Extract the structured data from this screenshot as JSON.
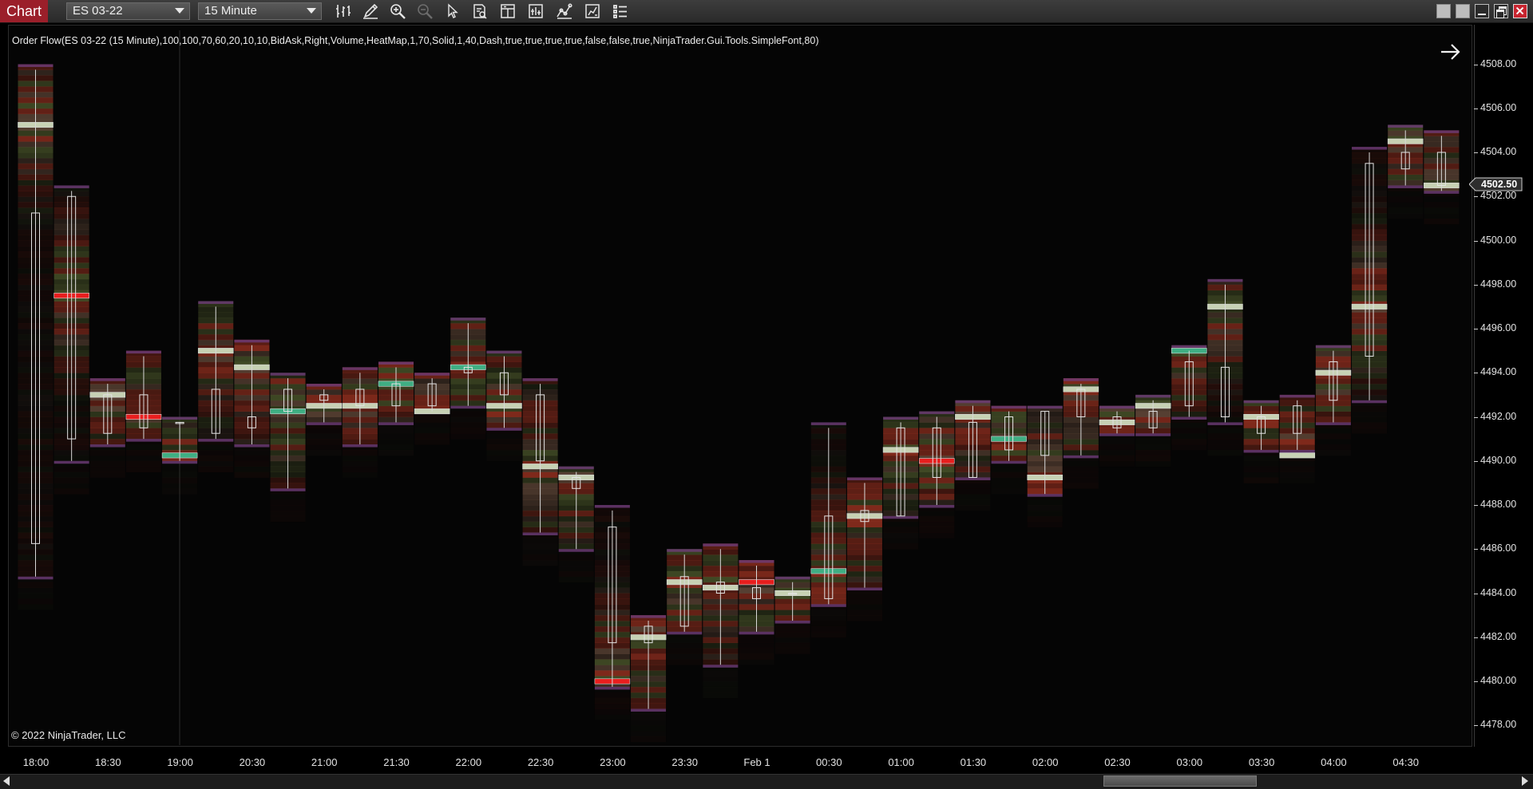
{
  "window": {
    "title": "Chart",
    "instrument": "ES 03-22",
    "interval": "15 Minute"
  },
  "toolbar": {
    "tools": [
      "bar-type-icon",
      "drawing-pencil-icon",
      "zoom-in-icon",
      "zoom-out-icon",
      "pointer-icon",
      "data-box-icon",
      "templates-icon",
      "indicators-icon",
      "strategies-icon",
      "properties-icon",
      "object-list-icon"
    ]
  },
  "indicator_label": "Order Flow(ES 03-22 (15 Minute),100,100,70,60,20,10,10,BidAsk,Right,Volume,HeatMap,1,70,Solid,1,40,Dash,true,true,true,true,false,false,true,NinjaTrader.Gui.Tools.SimpleFont,80)",
  "copyright": "© 2022 NinjaTrader, LLC",
  "last_price": "4502.50",
  "colors": {
    "title_red": "#9b1f2a",
    "ask_green": "#3fae83",
    "bid_red": "#e81e1e",
    "poc_fill": "#c7d1b4"
  },
  "chart_data": {
    "type": "candlestick",
    "price_axis": {
      "min": 4477.0,
      "max": 4509.0,
      "tick_labels": [
        "4508.00",
        "4506.00",
        "4504.00",
        "4502.00",
        "4500.00",
        "4498.00",
        "4496.00",
        "4494.00",
        "4492.00",
        "4490.00",
        "4488.00",
        "4486.00",
        "4484.00",
        "4482.00",
        "4480.00",
        "4478.00"
      ]
    },
    "time_axis": {
      "tick_labels": [
        "18:00",
        "18:30",
        "19:00",
        "20:30",
        "21:00",
        "21:30",
        "22:00",
        "22:30",
        "23:00",
        "23:30",
        "Feb 1",
        "00:30",
        "01:00",
        "01:30",
        "02:00",
        "02:30",
        "03:00",
        "03:30",
        "04:00",
        "04:30"
      ]
    },
    "bars": [
      {
        "o": 4486.25,
        "h": 4507.75,
        "l": 4484.75,
        "c": 4501.25,
        "poc": 4505.25,
        "pt": "n"
      },
      {
        "o": 4502.0,
        "h": 4502.25,
        "l": 4490.0,
        "c": 4491.0,
        "poc": 4497.5,
        "pt": "b"
      },
      {
        "o": 4491.25,
        "h": 4493.5,
        "l": 4490.75,
        "c": 4493.0,
        "poc": 4493.0,
        "pt": "n"
      },
      {
        "o": 4491.5,
        "h": 4494.75,
        "l": 4491.0,
        "c": 4493.0,
        "poc": 4492.0,
        "pt": "b"
      },
      {
        "o": 4491.75,
        "h": 4491.75,
        "l": 4490.0,
        "c": 4491.75,
        "poc": 4490.25,
        "pt": "g"
      },
      {
        "o": 4491.25,
        "h": 4497.0,
        "l": 4491.0,
        "c": 4493.25,
        "poc": 4495.0,
        "pt": "n"
      },
      {
        "o": 4492.0,
        "h": 4495.25,
        "l": 4490.75,
        "c": 4491.5,
        "poc": 4494.25,
        "pt": "n"
      },
      {
        "o": 4492.25,
        "h": 4493.75,
        "l": 4488.75,
        "c": 4493.25,
        "poc": 4492.25,
        "pt": "g"
      },
      {
        "o": 4492.75,
        "h": 4493.25,
        "l": 4491.75,
        "c": 4493.0,
        "poc": 4492.5,
        "pt": "n"
      },
      {
        "o": 4492.5,
        "h": 4494.0,
        "l": 4490.75,
        "c": 4493.25,
        "poc": 4492.5,
        "pt": "n"
      },
      {
        "o": 4492.5,
        "h": 4494.25,
        "l": 4491.75,
        "c": 4493.5,
        "poc": 4493.5,
        "pt": "g"
      },
      {
        "o": 4492.5,
        "h": 4493.75,
        "l": 4492.25,
        "c": 4493.5,
        "poc": 4492.25,
        "pt": "n"
      },
      {
        "o": 4494.0,
        "h": 4496.25,
        "l": 4492.5,
        "c": 4494.25,
        "poc": 4494.25,
        "pt": "g"
      },
      {
        "o": 4494.0,
        "h": 4494.75,
        "l": 4491.5,
        "c": 4493.0,
        "poc": 4492.5,
        "pt": "n"
      },
      {
        "o": 4493.0,
        "h": 4493.5,
        "l": 4486.75,
        "c": 4490.0,
        "poc": 4489.75,
        "pt": "n"
      },
      {
        "o": 4489.25,
        "h": 4489.5,
        "l": 4486.0,
        "c": 4488.75,
        "poc": 4489.25,
        "pt": "n"
      },
      {
        "o": 4487.0,
        "h": 4487.75,
        "l": 4479.75,
        "c": 4481.75,
        "poc": 4480.0,
        "pt": "b"
      },
      {
        "o": 4481.75,
        "h": 4482.75,
        "l": 4478.75,
        "c": 4482.5,
        "poc": 4482.0,
        "pt": "n"
      },
      {
        "o": 4482.5,
        "h": 4485.75,
        "l": 4482.25,
        "c": 4484.75,
        "poc": 4484.5,
        "pt": "n"
      },
      {
        "o": 4484.5,
        "h": 4486.0,
        "l": 4480.75,
        "c": 4484.0,
        "poc": 4484.25,
        "pt": "n"
      },
      {
        "o": 4483.75,
        "h": 4485.25,
        "l": 4482.25,
        "c": 4484.25,
        "poc": 4484.5,
        "pt": "b"
      },
      {
        "o": 4484.0,
        "h": 4484.5,
        "l": 4482.75,
        "c": 4484.0,
        "poc": 4484.0,
        "pt": "n"
      },
      {
        "o": 4483.75,
        "h": 4491.5,
        "l": 4483.5,
        "c": 4487.5,
        "poc": 4485.0,
        "pt": "g"
      },
      {
        "o": 4487.25,
        "h": 4489.0,
        "l": 4484.25,
        "c": 4487.75,
        "poc": 4487.5,
        "pt": "n"
      },
      {
        "o": 4487.5,
        "h": 4491.75,
        "l": 4487.5,
        "c": 4491.5,
        "poc": 4490.5,
        "pt": "n"
      },
      {
        "o": 4489.25,
        "h": 4492.0,
        "l": 4488.0,
        "c": 4491.5,
        "poc": 4490.0,
        "pt": "b"
      },
      {
        "o": 4489.25,
        "h": 4492.5,
        "l": 4489.25,
        "c": 4491.75,
        "poc": 4492.0,
        "pt": "n"
      },
      {
        "o": 4490.5,
        "h": 4492.25,
        "l": 4490.0,
        "c": 4492.0,
        "poc": 4491.0,
        "pt": "g"
      },
      {
        "o": 4490.25,
        "h": 4492.25,
        "l": 4488.5,
        "c": 4492.25,
        "poc": 4489.25,
        "pt": "n"
      },
      {
        "o": 4492.0,
        "h": 4493.5,
        "l": 4490.25,
        "c": 4493.25,
        "poc": 4493.25,
        "pt": "n"
      },
      {
        "o": 4491.5,
        "h": 4492.25,
        "l": 4491.25,
        "c": 4492.0,
        "poc": 4491.75,
        "pt": "n"
      },
      {
        "o": 4491.5,
        "h": 4492.75,
        "l": 4491.25,
        "c": 4492.25,
        "poc": 4492.5,
        "pt": "n"
      },
      {
        "o": 4492.5,
        "h": 4495.0,
        "l": 4492.0,
        "c": 4494.5,
        "poc": 4495.0,
        "pt": "g"
      },
      {
        "o": 4492.0,
        "h": 4498.0,
        "l": 4491.75,
        "c": 4494.25,
        "poc": 4497.0,
        "pt": "n"
      },
      {
        "o": 4492.0,
        "h": 4492.5,
        "l": 4490.5,
        "c": 4491.25,
        "poc": 4492.0,
        "pt": "n"
      },
      {
        "o": 4491.25,
        "h": 4492.75,
        "l": 4490.5,
        "c": 4492.5,
        "poc": 4490.25,
        "pt": "n"
      },
      {
        "o": 4492.75,
        "h": 4495.0,
        "l": 4491.75,
        "c": 4494.5,
        "poc": 4494.0,
        "pt": "n"
      },
      {
        "o": 4494.75,
        "h": 4504.0,
        "l": 4492.75,
        "c": 4503.5,
        "poc": 4497.0,
        "pt": "n"
      },
      {
        "o": 4503.25,
        "h": 4505.0,
        "l": 4502.5,
        "c": 4504.0,
        "poc": 4504.5,
        "pt": "n"
      },
      {
        "o": 4504.0,
        "h": 4504.75,
        "l": 4502.25,
        "c": 4502.5,
        "poc": 4502.5,
        "pt": "n"
      }
    ]
  }
}
